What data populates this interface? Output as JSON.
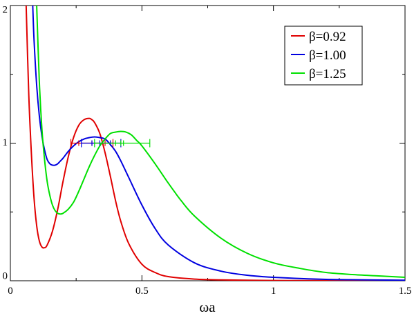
{
  "chart_data": {
    "type": "line",
    "title": "",
    "xlabel": "ωa",
    "ylabel": "",
    "xlim": [
      0,
      1.5
    ],
    "ylim": [
      0,
      2
    ],
    "grid": false,
    "legend_position": "top-right",
    "x_ticks": [
      {
        "value": 0,
        "label": "0"
      },
      {
        "value": 0.5,
        "label": "0.5"
      },
      {
        "value": 1,
        "label": "1"
      },
      {
        "value": 1.5,
        "label": "1.5"
      }
    ],
    "y_ticks": [
      {
        "value": 0,
        "label": "0"
      },
      {
        "value": 1,
        "label": "1"
      },
      {
        "value": 2,
        "label": "2"
      }
    ],
    "series": [
      {
        "name": "β=0.92",
        "color": "#e00000",
        "x": [
          0.06,
          0.07,
          0.08,
          0.09,
          0.1,
          0.11,
          0.12,
          0.13,
          0.14,
          0.16,
          0.18,
          0.2,
          0.22,
          0.24,
          0.26,
          0.28,
          0.3,
          0.31,
          0.32,
          0.34,
          0.36,
          0.38,
          0.4,
          0.42,
          0.45,
          0.5,
          0.55,
          0.6,
          0.7,
          0.8,
          1.0,
          1.2,
          1.5
        ],
        "y": [
          2.0,
          1.35,
          0.92,
          0.6,
          0.4,
          0.29,
          0.245,
          0.24,
          0.26,
          0.36,
          0.52,
          0.72,
          0.9,
          1.04,
          1.13,
          1.17,
          1.18,
          1.17,
          1.15,
          1.07,
          0.93,
          0.76,
          0.58,
          0.43,
          0.27,
          0.12,
          0.06,
          0.03,
          0.012,
          0.006,
          0.002,
          0.001,
          0.0
        ]
      },
      {
        "name": "β=1.00",
        "color": "#0000e0",
        "x": [
          0.085,
          0.09,
          0.1,
          0.11,
          0.12,
          0.13,
          0.14,
          0.15,
          0.16,
          0.17,
          0.18,
          0.19,
          0.2,
          0.22,
          0.24,
          0.26,
          0.28,
          0.3,
          0.32,
          0.34,
          0.36,
          0.38,
          0.4,
          0.42,
          0.45,
          0.5,
          0.55,
          0.6,
          0.7,
          0.8,
          0.9,
          1.0,
          1.2,
          1.5
        ],
        "y": [
          2.0,
          1.75,
          1.42,
          1.2,
          1.05,
          0.95,
          0.88,
          0.85,
          0.84,
          0.84,
          0.85,
          0.87,
          0.89,
          0.94,
          0.98,
          1.01,
          1.03,
          1.04,
          1.045,
          1.04,
          1.03,
          0.99,
          0.94,
          0.87,
          0.75,
          0.55,
          0.38,
          0.26,
          0.13,
          0.07,
          0.04,
          0.025,
          0.01,
          0.004
        ]
      },
      {
        "name": "β=1.25",
        "color": "#00e000",
        "x": [
          0.1,
          0.11,
          0.12,
          0.13,
          0.14,
          0.15,
          0.16,
          0.17,
          0.18,
          0.19,
          0.2,
          0.22,
          0.24,
          0.26,
          0.28,
          0.3,
          0.32,
          0.34,
          0.36,
          0.38,
          0.4,
          0.42,
          0.44,
          0.46,
          0.48,
          0.5,
          0.55,
          0.6,
          0.65,
          0.7,
          0.8,
          0.9,
          1.0,
          1.1,
          1.2,
          1.3,
          1.4,
          1.5
        ],
        "y": [
          2.0,
          1.45,
          1.1,
          0.88,
          0.72,
          0.62,
          0.55,
          0.51,
          0.49,
          0.485,
          0.49,
          0.52,
          0.57,
          0.65,
          0.74,
          0.83,
          0.91,
          0.98,
          1.03,
          1.07,
          1.08,
          1.085,
          1.08,
          1.06,
          1.02,
          0.98,
          0.85,
          0.71,
          0.58,
          0.47,
          0.31,
          0.2,
          0.13,
          0.09,
          0.06,
          0.045,
          0.035,
          0.025
        ]
      }
    ],
    "error_bars": [
      {
        "series": "β=0.92",
        "center": 0.31,
        "xmin": 0.23,
        "xmax": 0.39,
        "y": 1.0,
        "inner": [
          0.26,
          0.36
        ]
      },
      {
        "series": "β=1.00",
        "center": 0.34,
        "xmin": 0.27,
        "xmax": 0.42,
        "y": 1.0,
        "inner": [
          0.31,
          0.38
        ]
      },
      {
        "series": "β=1.25",
        "center": 0.42,
        "xmin": 0.32,
        "xmax": 0.53,
        "y": 1.0,
        "inner": [
          0.4,
          0.43
        ]
      }
    ]
  }
}
